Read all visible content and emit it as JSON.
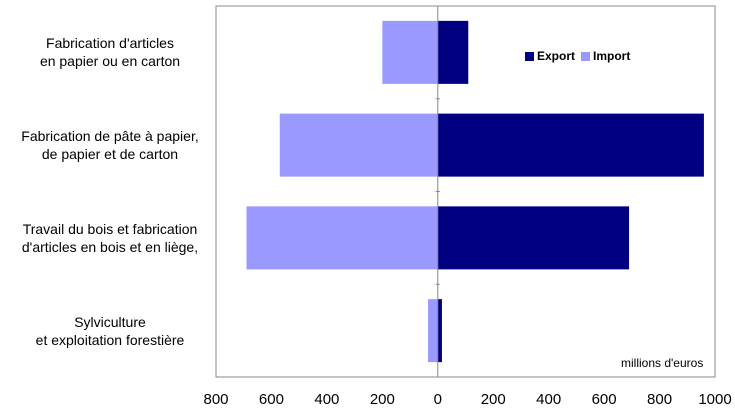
{
  "chart_data": {
    "type": "bar",
    "orientation": "horizontal",
    "categories": [
      "Fabrication d'articles\nen papier ou en carton",
      "Fabrication de pâte à papier,\nde papier et de carton",
      "Travail du bois et fabrication\nd'articles en bois et en liège,",
      "Sylviculture\net exploitation forestière"
    ],
    "series": [
      {
        "name": "Export",
        "values": [
          110,
          960,
          690,
          15
        ],
        "color": "#000080"
      },
      {
        "name": "Import",
        "values": [
          200,
          570,
          690,
          35
        ],
        "color": "#9999ff"
      }
    ],
    "xlim": [
      -800,
      1000
    ],
    "xticks": [
      -800,
      -600,
      -400,
      -200,
      0,
      200,
      400,
      600,
      800,
      1000
    ],
    "xtick_labels": [
      "800",
      "600",
      "400",
      "200",
      "0",
      "200",
      "400",
      "600",
      "800",
      "1000"
    ],
    "unit_label": "millions  d'euros",
    "legend_position": "top-right",
    "grid": false
  }
}
